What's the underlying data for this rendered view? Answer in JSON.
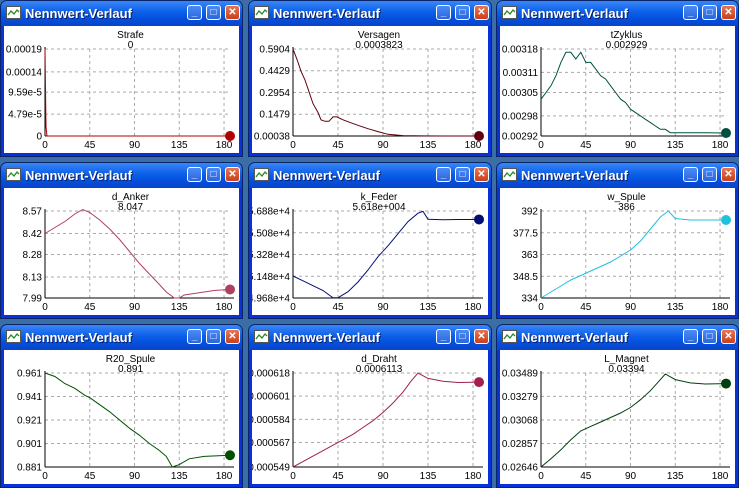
{
  "window_title": "Nennwert-Verlauf",
  "title_buttons": {
    "minimize": "_",
    "maximize": "□",
    "close": "✕"
  },
  "chart_data": [
    {
      "type": "line",
      "name": "Strafe",
      "value": "0",
      "color": "#b00000",
      "xlim": [
        0,
        186
      ],
      "ylim": [
        0,
        0.00019
      ],
      "x_ticks": [
        "0",
        "45",
        "90",
        "135",
        "180"
      ],
      "y_ticks": [
        {
          "label": "0.00019",
          "v": 0.00019
        },
        {
          "label": "0.00014",
          "v": 0.00014
        },
        {
          "label": "9.59e-5",
          "v": 9.59e-05
        },
        {
          "label": "4.79e-5",
          "v": 4.79e-05
        },
        {
          "label": "0",
          "v": 0
        }
      ],
      "series": [
        [
          0,
          0.00019
        ],
        [
          1,
          2e-05
        ],
        [
          2,
          0
        ],
        [
          186,
          0
        ]
      ]
    },
    {
      "type": "line",
      "name": "Versagen",
      "value": "0.0003823",
      "color": "#600010",
      "xlim": [
        0,
        186
      ],
      "ylim": [
        0.00038,
        0.5904
      ],
      "x_ticks": [
        "0",
        "45",
        "90",
        "135",
        "180"
      ],
      "y_ticks": [
        {
          "label": "0.5904",
          "v": 0.5904
        },
        {
          "label": "0.4429",
          "v": 0.4429
        },
        {
          "label": "0.2954",
          "v": 0.2954
        },
        {
          "label": "0.1479",
          "v": 0.1479
        },
        {
          "label": "0.00038",
          "v": 0.00038
        }
      ],
      "series": [
        [
          0,
          0.59
        ],
        [
          4,
          0.52
        ],
        [
          8,
          0.44
        ],
        [
          12,
          0.38
        ],
        [
          16,
          0.3
        ],
        [
          20,
          0.22
        ],
        [
          25,
          0.16
        ],
        [
          28,
          0.11
        ],
        [
          32,
          0.1
        ],
        [
          36,
          0.1
        ],
        [
          40,
          0.13
        ],
        [
          44,
          0.13
        ],
        [
          50,
          0.11
        ],
        [
          58,
          0.09
        ],
        [
          66,
          0.07
        ],
        [
          75,
          0.05
        ],
        [
          85,
          0.03
        ],
        [
          95,
          0.012
        ],
        [
          110,
          0.003
        ],
        [
          130,
          0.001
        ],
        [
          150,
          0.0006
        ],
        [
          186,
          0.00038
        ]
      ]
    },
    {
      "type": "line",
      "name": "tZyklus",
      "value": "0.002929",
      "color": "#005040",
      "xlim": [
        0,
        186
      ],
      "ylim": [
        0.00292,
        0.00318
      ],
      "x_ticks": [
        "0",
        "45",
        "90",
        "135",
        "180"
      ],
      "y_ticks": [
        {
          "label": "0.00318",
          "v": 0.00318
        },
        {
          "label": "0.00311",
          "v": 0.00311
        },
        {
          "label": "0.00305",
          "v": 0.00305
        },
        {
          "label": "0.00298",
          "v": 0.00298
        },
        {
          "label": "0.00292",
          "v": 0.00292
        }
      ],
      "series": [
        [
          0,
          0.00303
        ],
        [
          5,
          0.00305
        ],
        [
          10,
          0.00307
        ],
        [
          15,
          0.0031
        ],
        [
          20,
          0.00314
        ],
        [
          25,
          0.00317
        ],
        [
          30,
          0.00317
        ],
        [
          35,
          0.00315
        ],
        [
          40,
          0.00317
        ],
        [
          45,
          0.00314
        ],
        [
          50,
          0.00314
        ],
        [
          55,
          0.00312
        ],
        [
          60,
          0.0031
        ],
        [
          65,
          0.00309
        ],
        [
          70,
          0.00307
        ],
        [
          75,
          0.00305
        ],
        [
          80,
          0.00303
        ],
        [
          85,
          0.00302
        ],
        [
          90,
          0.003
        ],
        [
          95,
          0.00299
        ],
        [
          100,
          0.00298
        ],
        [
          105,
          0.00297
        ],
        [
          110,
          0.00296
        ],
        [
          115,
          0.00295
        ],
        [
          120,
          0.00294
        ],
        [
          125,
          0.00294
        ],
        [
          130,
          0.00293
        ],
        [
          135,
          0.00293
        ],
        [
          140,
          0.00293
        ],
        [
          150,
          0.00293
        ],
        [
          165,
          0.00293
        ],
        [
          186,
          0.002929
        ]
      ]
    },
    {
      "type": "line",
      "name": "d_Anker",
      "value": "8.047",
      "color": "#b04060",
      "xlim": [
        0,
        186
      ],
      "ylim": [
        7.99,
        8.57
      ],
      "x_ticks": [
        "0",
        "45",
        "90",
        "135",
        "180"
      ],
      "y_ticks": [
        {
          "label": "8.57",
          "v": 8.57
        },
        {
          "label": "8.42",
          "v": 8.42
        },
        {
          "label": "8.28",
          "v": 8.28
        },
        {
          "label": "8.13",
          "v": 8.13
        },
        {
          "label": "7.99",
          "v": 7.99
        }
      ],
      "series": [
        [
          0,
          8.42
        ],
        [
          10,
          8.46
        ],
        [
          20,
          8.5
        ],
        [
          30,
          8.55
        ],
        [
          38,
          8.58
        ],
        [
          45,
          8.56
        ],
        [
          55,
          8.51
        ],
        [
          65,
          8.45
        ],
        [
          75,
          8.38
        ],
        [
          85,
          8.3
        ],
        [
          95,
          8.22
        ],
        [
          105,
          8.15
        ],
        [
          115,
          8.08
        ],
        [
          122,
          8.03
        ],
        [
          130,
          7.99
        ],
        [
          135,
          7.99
        ],
        [
          140,
          8.01
        ],
        [
          150,
          8.02
        ],
        [
          160,
          8.03
        ],
        [
          170,
          8.04
        ],
        [
          186,
          8.047
        ]
      ]
    },
    {
      "type": "line",
      "name": "k_Feder",
      "value": "5.618e+004",
      "color": "#001070",
      "xlim": [
        0,
        186
      ],
      "ylim": [
        49680,
        56880
      ],
      "x_ticks": [
        "0",
        "45",
        "90",
        "135",
        "180"
      ],
      "y_ticks": [
        {
          "label": "5.688e+4",
          "v": 56880
        },
        {
          "label": "5.508e+4",
          "v": 55080
        },
        {
          "label": "5.328e+4",
          "v": 53280
        },
        {
          "label": "5.148e+4",
          "v": 51480
        },
        {
          "label": "4.968e+4",
          "v": 49680
        }
      ],
      "series": [
        [
          0,
          51500
        ],
        [
          10,
          51100
        ],
        [
          20,
          50700
        ],
        [
          30,
          50300
        ],
        [
          40,
          49700
        ],
        [
          45,
          49700
        ],
        [
          55,
          50200
        ],
        [
          65,
          51000
        ],
        [
          75,
          52000
        ],
        [
          85,
          53100
        ],
        [
          95,
          54000
        ],
        [
          105,
          55000
        ],
        [
          115,
          56000
        ],
        [
          125,
          56700
        ],
        [
          130,
          56850
        ],
        [
          135,
          56200
        ],
        [
          150,
          56150
        ],
        [
          165,
          56180
        ],
        [
          186,
          56180
        ]
      ]
    },
    {
      "type": "line",
      "name": "w_Spule",
      "value": "386",
      "color": "#20c0e0",
      "xlim": [
        0,
        186
      ],
      "ylim": [
        334,
        392
      ],
      "x_ticks": [
        "0",
        "45",
        "90",
        "135",
        "180"
      ],
      "y_ticks": [
        {
          "label": "392",
          "v": 392
        },
        {
          "label": "377.5",
          "v": 377.5
        },
        {
          "label": "363",
          "v": 363
        },
        {
          "label": "348.5",
          "v": 348.5
        },
        {
          "label": "334",
          "v": 334
        }
      ],
      "series": [
        [
          0,
          334
        ],
        [
          10,
          338
        ],
        [
          20,
          342
        ],
        [
          30,
          346
        ],
        [
          40,
          349
        ],
        [
          50,
          352
        ],
        [
          60,
          355
        ],
        [
          70,
          358
        ],
        [
          80,
          362
        ],
        [
          90,
          366
        ],
        [
          100,
          372
        ],
        [
          110,
          380
        ],
        [
          120,
          388
        ],
        [
          128,
          392
        ],
        [
          135,
          387
        ],
        [
          150,
          386
        ],
        [
          165,
          386
        ],
        [
          186,
          386
        ]
      ]
    },
    {
      "type": "line",
      "name": "R20_Spule",
      "value": "0.891",
      "color": "#005000",
      "xlim": [
        0,
        186
      ],
      "ylim": [
        0.881,
        0.961
      ],
      "x_ticks": [
        "0",
        "45",
        "90",
        "135",
        "180"
      ],
      "y_ticks": [
        {
          "label": "0.961",
          "v": 0.961
        },
        {
          "label": "0.941",
          "v": 0.941
        },
        {
          "label": "0.921",
          "v": 0.921
        },
        {
          "label": "0.901",
          "v": 0.901
        },
        {
          "label": "0.881",
          "v": 0.881
        }
      ],
      "series": [
        [
          0,
          0.961
        ],
        [
          10,
          0.958
        ],
        [
          20,
          0.952
        ],
        [
          30,
          0.948
        ],
        [
          40,
          0.942
        ],
        [
          45,
          0.94
        ],
        [
          55,
          0.934
        ],
        [
          65,
          0.928
        ],
        [
          75,
          0.921
        ],
        [
          85,
          0.914
        ],
        [
          95,
          0.908
        ],
        [
          105,
          0.901
        ],
        [
          115,
          0.895
        ],
        [
          122,
          0.89
        ],
        [
          128,
          0.881
        ],
        [
          135,
          0.883
        ],
        [
          145,
          0.888
        ],
        [
          160,
          0.89
        ],
        [
          186,
          0.891
        ]
      ]
    },
    {
      "type": "line",
      "name": "d_Draht",
      "value": "0.0006113",
      "color": "#a02050",
      "xlim": [
        0,
        186
      ],
      "ylim": [
        0.000549,
        0.000618
      ],
      "x_ticks": [
        "0",
        "45",
        "90",
        "135",
        "180"
      ],
      "y_ticks": [
        {
          "label": "0.000618",
          "v": 0.000618
        },
        {
          "label": "0.000601",
          "v": 0.000601
        },
        {
          "label": "0.000584",
          "v": 0.000584
        },
        {
          "label": "0.000567",
          "v": 0.000567
        },
        {
          "label": "0.000549",
          "v": 0.000549
        }
      ],
      "series": [
        [
          0,
          0.000549
        ],
        [
          10,
          0.000553
        ],
        [
          20,
          0.000557
        ],
        [
          30,
          0.000561
        ],
        [
          40,
          0.000565
        ],
        [
          50,
          0.000569
        ],
        [
          60,
          0.000573
        ],
        [
          70,
          0.000578
        ],
        [
          80,
          0.000583
        ],
        [
          90,
          0.000589
        ],
        [
          100,
          0.000596
        ],
        [
          110,
          0.000604
        ],
        [
          118,
          0.000612
        ],
        [
          125,
          0.000618
        ],
        [
          135,
          0.000614
        ],
        [
          150,
          0.000612
        ],
        [
          165,
          0.000611
        ],
        [
          186,
          0.0006113
        ]
      ]
    },
    {
      "type": "line",
      "name": "L_Magnet",
      "value": "0.03394",
      "color": "#004010",
      "xlim": [
        0,
        186
      ],
      "ylim": [
        0.02646,
        0.03489
      ],
      "x_ticks": [
        "0",
        "45",
        "90",
        "135",
        "180"
      ],
      "y_ticks": [
        {
          "label": "0.03489",
          "v": 0.03489
        },
        {
          "label": "0.03279",
          "v": 0.03279
        },
        {
          "label": "0.03068",
          "v": 0.03068
        },
        {
          "label": "0.02857",
          "v": 0.02857
        },
        {
          "label": "0.02646",
          "v": 0.02646
        }
      ],
      "series": [
        [
          0,
          0.02646
        ],
        [
          10,
          0.0272
        ],
        [
          20,
          0.028
        ],
        [
          30,
          0.0289
        ],
        [
          40,
          0.0297
        ],
        [
          50,
          0.0301
        ],
        [
          60,
          0.0305
        ],
        [
          70,
          0.0309
        ],
        [
          80,
          0.0313
        ],
        [
          90,
          0.0318
        ],
        [
          100,
          0.0325
        ],
        [
          110,
          0.0333
        ],
        [
          118,
          0.0341
        ],
        [
          125,
          0.0348
        ],
        [
          135,
          0.0343
        ],
        [
          150,
          0.034
        ],
        [
          165,
          0.0339
        ],
        [
          186,
          0.03394
        ]
      ]
    }
  ]
}
